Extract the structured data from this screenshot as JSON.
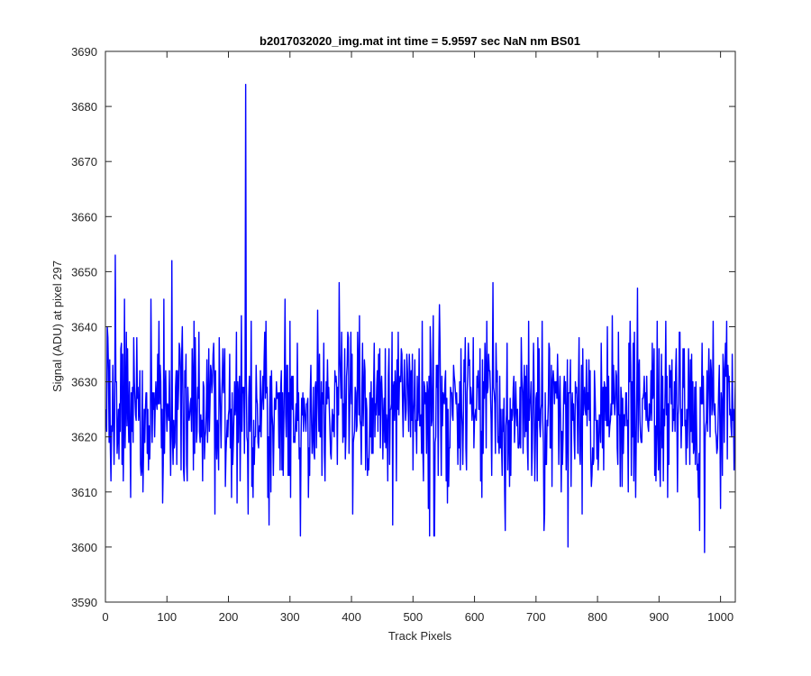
{
  "chart_data": {
    "type": "line",
    "title": "b2017032020_img.mat int time = 5.9597 sec  NaN nm BS01",
    "xlabel": "Track Pixels",
    "ylabel": "Signal (ADU) at pixel 297",
    "xlim": [
      0,
      1024
    ],
    "ylim": [
      3590,
      3690
    ],
    "x_ticks": [
      0,
      100,
      200,
      300,
      400,
      500,
      600,
      700,
      800,
      900,
      1000
    ],
    "y_ticks": [
      3590,
      3600,
      3610,
      3620,
      3630,
      3640,
      3650,
      3660,
      3670,
      3680,
      3690
    ],
    "grid": false,
    "line_color": "#0000ff",
    "series": [
      {
        "x_start": 1,
        "x_step": 1,
        "count": 1024,
        "mean": 3625,
        "std": 7.5,
        "min": 3599,
        "max": 3684,
        "notable_points": [
          {
            "x": 16,
            "y": 3653
          },
          {
            "x": 61,
            "y": 3610
          },
          {
            "x": 93,
            "y": 3608
          },
          {
            "x": 108,
            "y": 3652
          },
          {
            "x": 228,
            "y": 3684
          },
          {
            "x": 232,
            "y": 3606
          },
          {
            "x": 266,
            "y": 3604
          },
          {
            "x": 380,
            "y": 3648
          },
          {
            "x": 402,
            "y": 3606
          },
          {
            "x": 467,
            "y": 3604
          },
          {
            "x": 630,
            "y": 3648
          },
          {
            "x": 650,
            "y": 3603
          },
          {
            "x": 713,
            "y": 3603
          },
          {
            "x": 752,
            "y": 3600
          },
          {
            "x": 865,
            "y": 3647
          },
          {
            "x": 966,
            "y": 3603
          },
          {
            "x": 974,
            "y": 3599
          },
          {
            "x": 1010,
            "y": 3641
          }
        ]
      }
    ]
  }
}
